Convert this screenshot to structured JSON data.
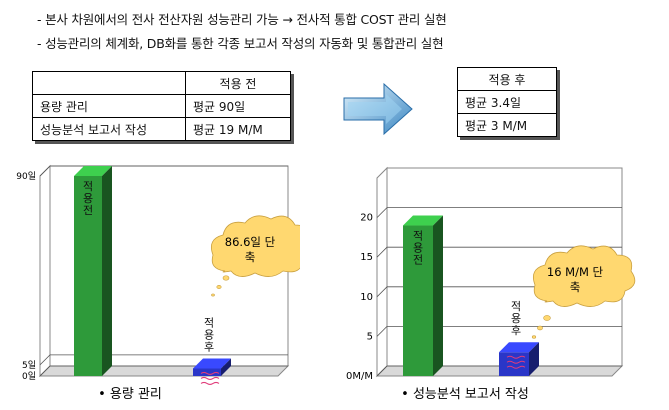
{
  "bullets": [
    "- 본사 차원에서의 전사 전산자원 성능관리 가능  →  전사적 통합 COST 관리 실현",
    "- 성능관리의 체계화, DB화를 통한  각종 보고서 작성의 자동화 및 통합관리 실현"
  ],
  "before_table": {
    "header": "적용 전",
    "rows": [
      {
        "label": "용량 관리",
        "value": "평균 90일"
      },
      {
        "label": "성능분석 보고서 작성",
        "value": "평균 19 M/M"
      }
    ]
  },
  "after_table": {
    "header": "적용 후",
    "rows": [
      "평균 3.4일",
      "평균 3 M/M"
    ]
  },
  "colors": {
    "before_bar": "#2e9a3a",
    "after_bar": "#2a36c8",
    "callout": "#ffd870",
    "arrow": "#4a90c8"
  },
  "chart_data": [
    {
      "type": "bar",
      "categories": [
        "적용 전",
        "적용 후"
      ],
      "values": [
        90,
        3.4
      ],
      "ytick_labels": [
        "90일",
        "5일",
        "0일"
      ],
      "ytick_values": [
        90,
        5,
        0
      ],
      "ylim": [
        0,
        90
      ],
      "grid": true,
      "bar_labels": [
        "적용 전",
        "적용후"
      ],
      "callout": "86.6일 단축",
      "callout_lines": [
        "86.6일 단",
        "축"
      ],
      "xlabel": "• 용량 관리"
    },
    {
      "type": "bar",
      "categories": [
        "적용 전",
        "적용 후"
      ],
      "values": [
        19,
        3
      ],
      "ytick_labels": [
        "20",
        "15",
        "10",
        "5",
        "0M/M"
      ],
      "ytick_values": [
        20,
        15,
        10,
        5,
        0
      ],
      "ylim": [
        0,
        25
      ],
      "grid": true,
      "bar_labels": [
        "적용 전",
        "적용후"
      ],
      "callout": "16 M/M 단축",
      "callout_lines": [
        "16 M/M 단",
        "축"
      ],
      "xlabel": "• 성능분석 보고서 작성"
    }
  ]
}
